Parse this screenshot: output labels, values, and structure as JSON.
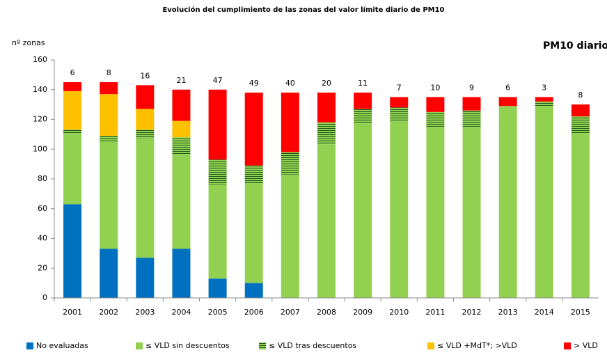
{
  "chart_data": {
    "type": "stacked_bar",
    "title": "Evolución del cumplimiento de las zonas del valor límite diario de PM10",
    "subtitle": "PM10 diario",
    "y_label": "nº zonas",
    "categories": [
      "2001",
      "2002",
      "2003",
      "2004",
      "2005",
      "2006",
      "2007",
      "2008",
      "2009",
      "2010",
      "2011",
      "2012",
      "2013",
      "2014",
      "2015"
    ],
    "series": [
      {
        "name": "No evaluadas",
        "color": "#0070c0",
        "values": [
          63,
          33,
          27,
          33,
          13,
          10,
          0,
          0,
          0,
          0,
          0,
          0,
          0,
          0,
          0
        ]
      },
      {
        "name": "≤ VLD sin descuentos",
        "color": "#92d050",
        "values": [
          47,
          72,
          80,
          63,
          63,
          67,
          83,
          103,
          117,
          119,
          115,
          115,
          129,
          129,
          110
        ]
      },
      {
        "name": "≤ VLD tras descuentos",
        "color": "#92d050",
        "hatch": "#1e5a1e",
        "values": [
          3,
          4,
          6,
          12,
          17,
          12,
          15,
          15,
          10,
          9,
          10,
          11,
          0,
          3,
          12
        ]
      },
      {
        "name": "≤ VLD +MdT*; >VLD",
        "color": "#ffc000",
        "values": [
          26,
          28,
          14,
          11,
          0,
          0,
          0,
          0,
          0,
          0,
          0,
          0,
          0,
          0,
          0
        ]
      },
      {
        "name": "> VLD",
        "color": "#ff0000",
        "values": [
          6,
          8,
          16,
          21,
          47,
          49,
          40,
          20,
          11,
          7,
          10,
          9,
          6,
          3,
          8
        ]
      }
    ],
    "ylim": [
      0,
      160
    ],
    "yticks": [
      0,
      20,
      40,
      60,
      80,
      100,
      120,
      140,
      160
    ],
    "label_series": 4,
    "legend": "bottom"
  }
}
